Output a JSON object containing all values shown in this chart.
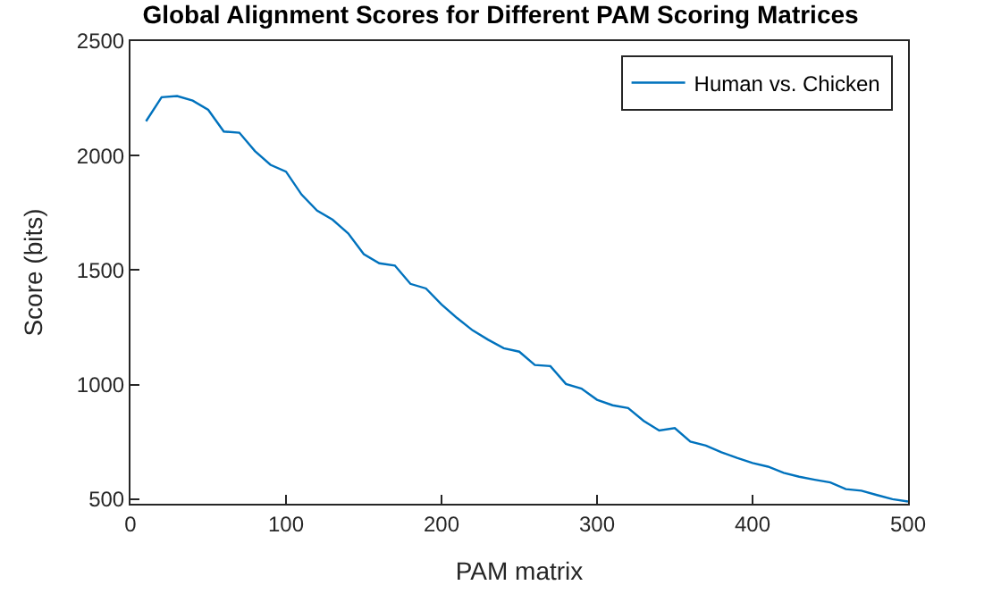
{
  "chart_data": {
    "type": "line",
    "title": "Global Alignment Scores for Different PAM Scoring Matrices",
    "xlabel": "PAM matrix",
    "ylabel": "Score (bits)",
    "x": [
      10,
      20,
      30,
      40,
      50,
      60,
      70,
      80,
      90,
      100,
      110,
      120,
      130,
      140,
      150,
      160,
      170,
      180,
      190,
      200,
      210,
      220,
      230,
      240,
      250,
      260,
      270,
      280,
      290,
      300,
      310,
      320,
      330,
      340,
      350,
      360,
      370,
      380,
      390,
      400,
      410,
      420,
      430,
      440,
      450,
      460,
      470,
      480,
      490,
      500
    ],
    "series": [
      {
        "name": "Human vs. Chicken",
        "color": "#0072bd",
        "values": [
          2150,
          2255,
          2260,
          2240,
          2200,
          2105,
          2100,
          2020,
          1960,
          1930,
          1830,
          1760,
          1720,
          1660,
          1570,
          1530,
          1520,
          1440,
          1420,
          1350,
          1291,
          1237,
          1196,
          1159,
          1144,
          1086,
          1081,
          1003,
          983,
          934,
          910,
          898,
          842,
          800,
          810,
          751,
          734,
          705,
          680,
          658,
          642,
          615,
          598,
          585,
          573,
          544,
          537,
          518,
          500,
          490
        ]
      }
    ],
    "xlim": [
      0,
      500
    ],
    "xticks": [
      0,
      100,
      200,
      300,
      400,
      500
    ],
    "ylim": [
      480,
      2500
    ],
    "yticks": [
      500,
      1000,
      1500,
      2000,
      2500
    ],
    "legend": "top right",
    "marker": "none",
    "line_style": "solid"
  }
}
